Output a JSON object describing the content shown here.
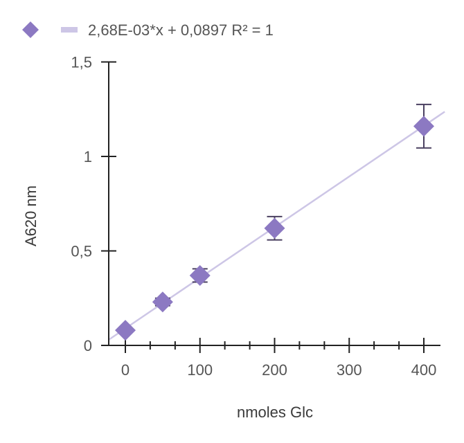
{
  "chart_data": {
    "type": "scatter",
    "xlabel": "nmoles Glc",
    "ylabel": "A620 nm",
    "xlim": [
      -22,
      425
    ],
    "ylim": [
      0,
      1.5
    ],
    "x_ticks": [
      {
        "value": 0,
        "label": "0"
      },
      {
        "value": 100,
        "label": "100"
      },
      {
        "value": 200,
        "label": "200"
      },
      {
        "value": 300,
        "label": "300"
      },
      {
        "value": 400,
        "label": "400"
      }
    ],
    "x_minor_ticks": [
      33.3,
      66.7,
      133.3,
      166.7,
      233.3,
      266.7,
      333.3,
      366.7
    ],
    "y_ticks": [
      {
        "value": 0,
        "label": "0"
      },
      {
        "value": 0.5,
        "label": "0,5"
      },
      {
        "value": 1,
        "label": "1"
      },
      {
        "value": 1.5,
        "label": "1,5"
      }
    ],
    "grid": false,
    "legend_position": "top-left",
    "series": [
      {
        "marker": "diamond",
        "color": "#8c79c2",
        "points": [
          {
            "x": 0,
            "y": 0.08,
            "err": 0.0
          },
          {
            "x": 50,
            "y": 0.23,
            "err": 0.02
          },
          {
            "x": 100,
            "y": 0.37,
            "err": 0.035
          },
          {
            "x": 200,
            "y": 0.62,
            "err": 0.062
          },
          {
            "x": 400,
            "y": 1.16,
            "err": 0.115
          }
        ]
      }
    ],
    "trendline": {
      "label": "2,68E-03*x + 0,0897 R² = 1",
      "slope": 0.00268,
      "intercept": 0.0897,
      "x_range": [
        -22,
        425
      ],
      "color": "#cdc6e6"
    },
    "error_bar_color": "#4a4060",
    "axis_color": "#222222"
  }
}
